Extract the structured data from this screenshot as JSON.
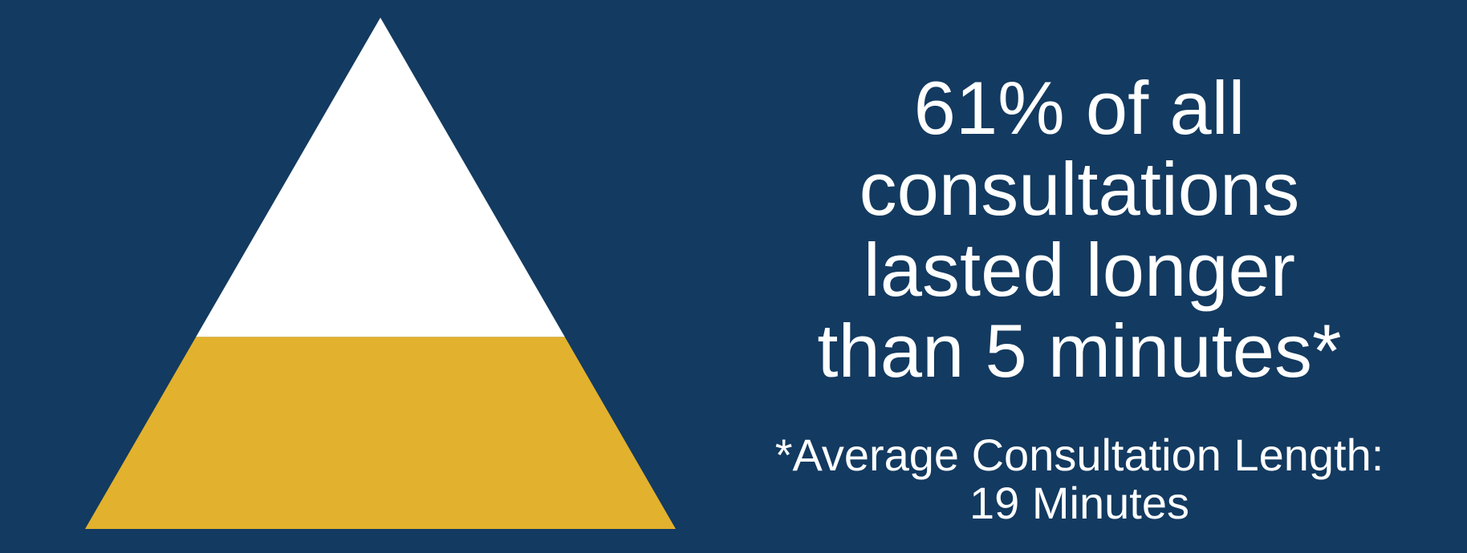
{
  "chart_data": {
    "type": "area",
    "title": "",
    "values": [
      61,
      39
    ],
    "highlight": {
      "name": "",
      "value": 61,
      "color": "#e2b12d"
    },
    "remainder": {
      "name": "",
      "value": 39,
      "color": "#ffffff"
    }
  },
  "headline": {
    "line1": "61% of all",
    "line2": "consultations",
    "line3": "lasted longer",
    "line4": "than 5 minutes*"
  },
  "footnote": {
    "line1": "*Average Consultation Length:",
    "line2": "19 Minutes"
  },
  "colors": {
    "background": "#133a60",
    "highlight": "#e2b12d",
    "remainder": "#ffffff",
    "text": "#ffffff"
  }
}
